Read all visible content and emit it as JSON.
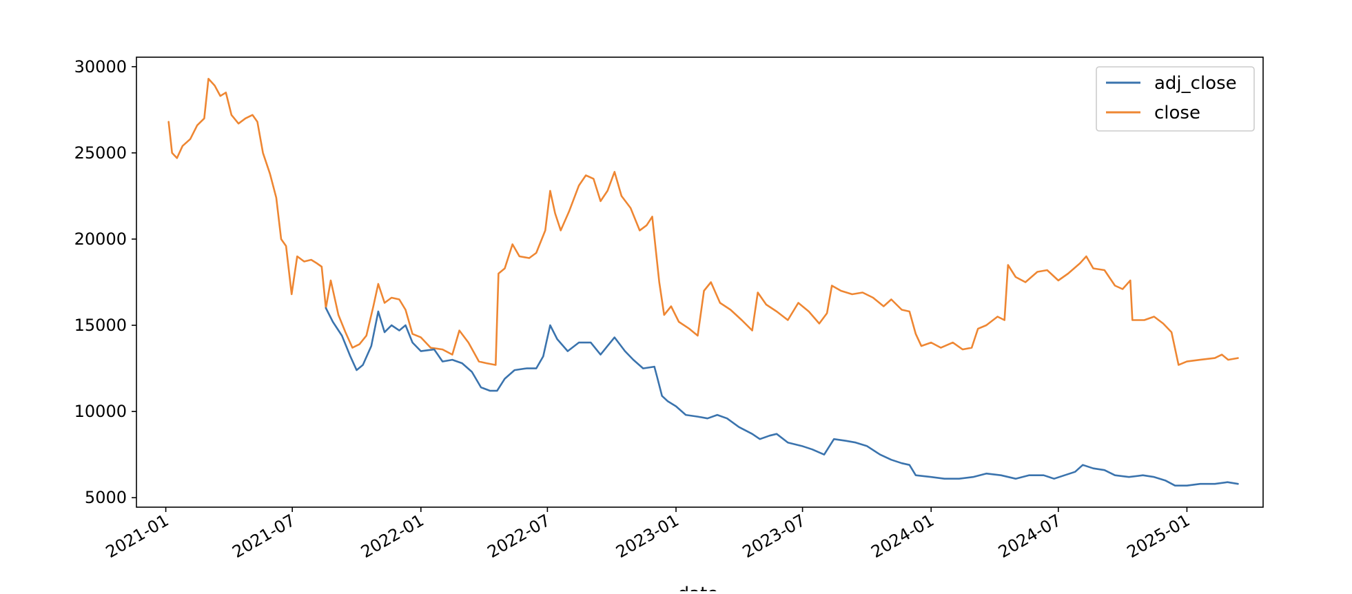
{
  "chart_data": {
    "type": "line",
    "title": "",
    "xlabel": "date",
    "ylabel": "",
    "x_range": [
      "2020-11-20",
      "2025-04-20"
    ],
    "ylim": [
      4450,
      30550
    ],
    "grid": false,
    "legend_position": "top-right",
    "colors": {
      "adj_close": "#3a73ad",
      "close": "#ee8632"
    },
    "x_ticks": [
      "2021-01",
      "2021-07",
      "2022-01",
      "2022-07",
      "2023-01",
      "2023-07",
      "2024-01",
      "2024-07",
      "2025-01"
    ],
    "y_ticks": [
      5000,
      10000,
      15000,
      20000,
      25000,
      30000
    ],
    "series": [
      {
        "name": "adj_close",
        "points": [
          [
            "2021-08-18",
            16000
          ],
          [
            "2021-08-28",
            15200
          ],
          [
            "2021-09-10",
            14400
          ],
          [
            "2021-09-22",
            13200
          ],
          [
            "2021-10-01",
            12400
          ],
          [
            "2021-10-10",
            12700
          ],
          [
            "2021-10-22",
            13800
          ],
          [
            "2021-11-01",
            15800
          ],
          [
            "2021-11-10",
            14600
          ],
          [
            "2021-11-20",
            15000
          ],
          [
            "2021-12-01",
            14700
          ],
          [
            "2021-12-10",
            15000
          ],
          [
            "2021-12-20",
            14000
          ],
          [
            "2022-01-01",
            13500
          ],
          [
            "2022-01-20",
            13600
          ],
          [
            "2022-02-01",
            12900
          ],
          [
            "2022-02-15",
            13000
          ],
          [
            "2022-03-01",
            12800
          ],
          [
            "2022-03-15",
            12300
          ],
          [
            "2022-03-28",
            11400
          ],
          [
            "2022-04-10",
            11200
          ],
          [
            "2022-04-20",
            11200
          ],
          [
            "2022-05-01",
            11900
          ],
          [
            "2022-05-15",
            12400
          ],
          [
            "2022-06-01",
            12500
          ],
          [
            "2022-06-15",
            12500
          ],
          [
            "2022-06-25",
            13200
          ],
          [
            "2022-07-05",
            15000
          ],
          [
            "2022-07-15",
            14200
          ],
          [
            "2022-07-30",
            13500
          ],
          [
            "2022-08-15",
            14000
          ],
          [
            "2022-09-01",
            14000
          ],
          [
            "2022-09-15",
            13300
          ],
          [
            "2022-09-25",
            13800
          ],
          [
            "2022-10-05",
            14300
          ],
          [
            "2022-10-20",
            13500
          ],
          [
            "2022-11-01",
            13000
          ],
          [
            "2022-11-15",
            12500
          ],
          [
            "2022-12-01",
            12600
          ],
          [
            "2022-12-05",
            12000
          ],
          [
            "2022-12-12",
            10900
          ],
          [
            "2022-12-20",
            10600
          ],
          [
            "2023-01-01",
            10300
          ],
          [
            "2023-01-15",
            9800
          ],
          [
            "2023-02-01",
            9700
          ],
          [
            "2023-02-15",
            9600
          ],
          [
            "2023-03-01",
            9800
          ],
          [
            "2023-03-15",
            9600
          ],
          [
            "2023-04-01",
            9100
          ],
          [
            "2023-04-20",
            8700
          ],
          [
            "2023-05-01",
            8400
          ],
          [
            "2023-05-15",
            8600
          ],
          [
            "2023-05-25",
            8700
          ],
          [
            "2023-06-10",
            8200
          ],
          [
            "2023-06-30",
            8000
          ],
          [
            "2023-07-15",
            7800
          ],
          [
            "2023-08-01",
            7500
          ],
          [
            "2023-08-15",
            8400
          ],
          [
            "2023-09-01",
            8300
          ],
          [
            "2023-09-15",
            8200
          ],
          [
            "2023-10-01",
            8000
          ],
          [
            "2023-10-20",
            7500
          ],
          [
            "2023-11-05",
            7200
          ],
          [
            "2023-11-20",
            7000
          ],
          [
            "2023-12-01",
            6900
          ],
          [
            "2023-12-10",
            6300
          ],
          [
            "2024-01-01",
            6200
          ],
          [
            "2024-01-20",
            6100
          ],
          [
            "2024-02-10",
            6100
          ],
          [
            "2024-03-01",
            6200
          ],
          [
            "2024-03-20",
            6400
          ],
          [
            "2024-04-10",
            6300
          ],
          [
            "2024-05-01",
            6100
          ],
          [
            "2024-05-20",
            6300
          ],
          [
            "2024-06-10",
            6300
          ],
          [
            "2024-06-25",
            6100
          ],
          [
            "2024-07-10",
            6300
          ],
          [
            "2024-07-25",
            6500
          ],
          [
            "2024-08-05",
            6900
          ],
          [
            "2024-08-20",
            6700
          ],
          [
            "2024-09-05",
            6600
          ],
          [
            "2024-09-20",
            6300
          ],
          [
            "2024-10-10",
            6200
          ],
          [
            "2024-10-30",
            6300
          ],
          [
            "2024-11-15",
            6200
          ],
          [
            "2024-12-01",
            6000
          ],
          [
            "2024-12-15",
            5700
          ],
          [
            "2025-01-01",
            5700
          ],
          [
            "2025-01-20",
            5800
          ],
          [
            "2025-02-10",
            5800
          ],
          [
            "2025-02-28",
            5900
          ],
          [
            "2025-03-15",
            5800
          ]
        ]
      },
      {
        "name": "close",
        "points": [
          [
            "2021-01-05",
            26800
          ],
          [
            "2021-01-10",
            25000
          ],
          [
            "2021-01-17",
            24700
          ],
          [
            "2021-01-25",
            25400
          ],
          [
            "2021-02-05",
            25800
          ],
          [
            "2021-02-15",
            26600
          ],
          [
            "2021-02-25",
            27000
          ],
          [
            "2021-03-03",
            29300
          ],
          [
            "2021-03-12",
            28900
          ],
          [
            "2021-03-20",
            28300
          ],
          [
            "2021-03-28",
            28500
          ],
          [
            "2021-04-05",
            27200
          ],
          [
            "2021-04-15",
            26700
          ],
          [
            "2021-04-25",
            27000
          ],
          [
            "2021-05-05",
            27200
          ],
          [
            "2021-05-12",
            26800
          ],
          [
            "2021-05-20",
            25000
          ],
          [
            "2021-05-30",
            23800
          ],
          [
            "2021-06-08",
            22400
          ],
          [
            "2021-06-15",
            20000
          ],
          [
            "2021-06-22",
            19600
          ],
          [
            "2021-06-30",
            16800
          ],
          [
            "2021-07-08",
            19000
          ],
          [
            "2021-07-18",
            18700
          ],
          [
            "2021-07-28",
            18800
          ],
          [
            "2021-08-05",
            18600
          ],
          [
            "2021-08-12",
            18400
          ],
          [
            "2021-08-18",
            16000
          ],
          [
            "2021-08-25",
            17600
          ],
          [
            "2021-09-05",
            15600
          ],
          [
            "2021-09-15",
            14600
          ],
          [
            "2021-09-25",
            13700
          ],
          [
            "2021-10-05",
            13900
          ],
          [
            "2021-10-15",
            14400
          ],
          [
            "2021-10-25",
            16100
          ],
          [
            "2021-11-01",
            17400
          ],
          [
            "2021-11-10",
            16300
          ],
          [
            "2021-11-20",
            16600
          ],
          [
            "2021-12-01",
            16500
          ],
          [
            "2021-12-10",
            15900
          ],
          [
            "2021-12-20",
            14500
          ],
          [
            "2022-01-01",
            14300
          ],
          [
            "2022-01-15",
            13700
          ],
          [
            "2022-02-01",
            13600
          ],
          [
            "2022-02-15",
            13300
          ],
          [
            "2022-02-25",
            14700
          ],
          [
            "2022-03-10",
            14000
          ],
          [
            "2022-03-25",
            12900
          ],
          [
            "2022-04-05",
            12800
          ],
          [
            "2022-04-18",
            12700
          ],
          [
            "2022-04-22",
            18000
          ],
          [
            "2022-05-01",
            18300
          ],
          [
            "2022-05-12",
            19700
          ],
          [
            "2022-05-22",
            19000
          ],
          [
            "2022-06-05",
            18900
          ],
          [
            "2022-06-15",
            19200
          ],
          [
            "2022-06-28",
            20500
          ],
          [
            "2022-07-05",
            22800
          ],
          [
            "2022-07-12",
            21500
          ],
          [
            "2022-07-20",
            20500
          ],
          [
            "2022-08-01",
            21600
          ],
          [
            "2022-08-15",
            23100
          ],
          [
            "2022-08-25",
            23700
          ],
          [
            "2022-09-05",
            23500
          ],
          [
            "2022-09-15",
            22200
          ],
          [
            "2022-09-25",
            22800
          ],
          [
            "2022-10-05",
            23900
          ],
          [
            "2022-10-15",
            22500
          ],
          [
            "2022-10-28",
            21800
          ],
          [
            "2022-11-10",
            20500
          ],
          [
            "2022-11-20",
            20800
          ],
          [
            "2022-11-28",
            21300
          ],
          [
            "2022-12-08",
            17500
          ],
          [
            "2022-12-15",
            15600
          ],
          [
            "2022-12-25",
            16100
          ],
          [
            "2023-01-05",
            15200
          ],
          [
            "2023-01-20",
            14800
          ],
          [
            "2023-02-01",
            14400
          ],
          [
            "2023-02-10",
            17000
          ],
          [
            "2023-02-20",
            17500
          ],
          [
            "2023-03-05",
            16300
          ],
          [
            "2023-03-20",
            15900
          ],
          [
            "2023-04-05",
            15300
          ],
          [
            "2023-04-20",
            14700
          ],
          [
            "2023-04-28",
            16900
          ],
          [
            "2023-05-10",
            16200
          ],
          [
            "2023-05-25",
            15800
          ],
          [
            "2023-06-10",
            15300
          ],
          [
            "2023-06-25",
            16300
          ],
          [
            "2023-07-10",
            15800
          ],
          [
            "2023-07-25",
            15100
          ],
          [
            "2023-08-05",
            15700
          ],
          [
            "2023-08-12",
            17300
          ],
          [
            "2023-08-25",
            17000
          ],
          [
            "2023-09-10",
            16800
          ],
          [
            "2023-09-25",
            16900
          ],
          [
            "2023-10-10",
            16600
          ],
          [
            "2023-10-25",
            16100
          ],
          [
            "2023-11-05",
            16500
          ],
          [
            "2023-11-20",
            15900
          ],
          [
            "2023-12-01",
            15800
          ],
          [
            "2023-12-10",
            14500
          ],
          [
            "2023-12-18",
            13800
          ],
          [
            "2024-01-01",
            14000
          ],
          [
            "2024-01-15",
            13700
          ],
          [
            "2024-02-01",
            14000
          ],
          [
            "2024-02-15",
            13600
          ],
          [
            "2024-02-28",
            13700
          ],
          [
            "2024-03-08",
            14800
          ],
          [
            "2024-03-20",
            15000
          ],
          [
            "2024-04-05",
            15500
          ],
          [
            "2024-04-15",
            15300
          ],
          [
            "2024-04-20",
            18500
          ],
          [
            "2024-05-01",
            17800
          ],
          [
            "2024-05-15",
            17500
          ],
          [
            "2024-06-01",
            18100
          ],
          [
            "2024-06-15",
            18200
          ],
          [
            "2024-07-01",
            17600
          ],
          [
            "2024-07-15",
            18000
          ],
          [
            "2024-08-01",
            18600
          ],
          [
            "2024-08-10",
            19000
          ],
          [
            "2024-08-20",
            18300
          ],
          [
            "2024-09-05",
            18200
          ],
          [
            "2024-09-20",
            17300
          ],
          [
            "2024-10-01",
            17100
          ],
          [
            "2024-10-12",
            17600
          ],
          [
            "2024-10-15",
            15300
          ],
          [
            "2024-11-01",
            15300
          ],
          [
            "2024-11-15",
            15500
          ],
          [
            "2024-11-28",
            15100
          ],
          [
            "2024-12-10",
            14600
          ],
          [
            "2024-12-20",
            12700
          ],
          [
            "2025-01-01",
            12900
          ],
          [
            "2025-01-20",
            13000
          ],
          [
            "2025-02-10",
            13100
          ],
          [
            "2025-02-20",
            13300
          ],
          [
            "2025-03-01",
            13000
          ],
          [
            "2025-03-15",
            13100
          ]
        ]
      }
    ]
  }
}
